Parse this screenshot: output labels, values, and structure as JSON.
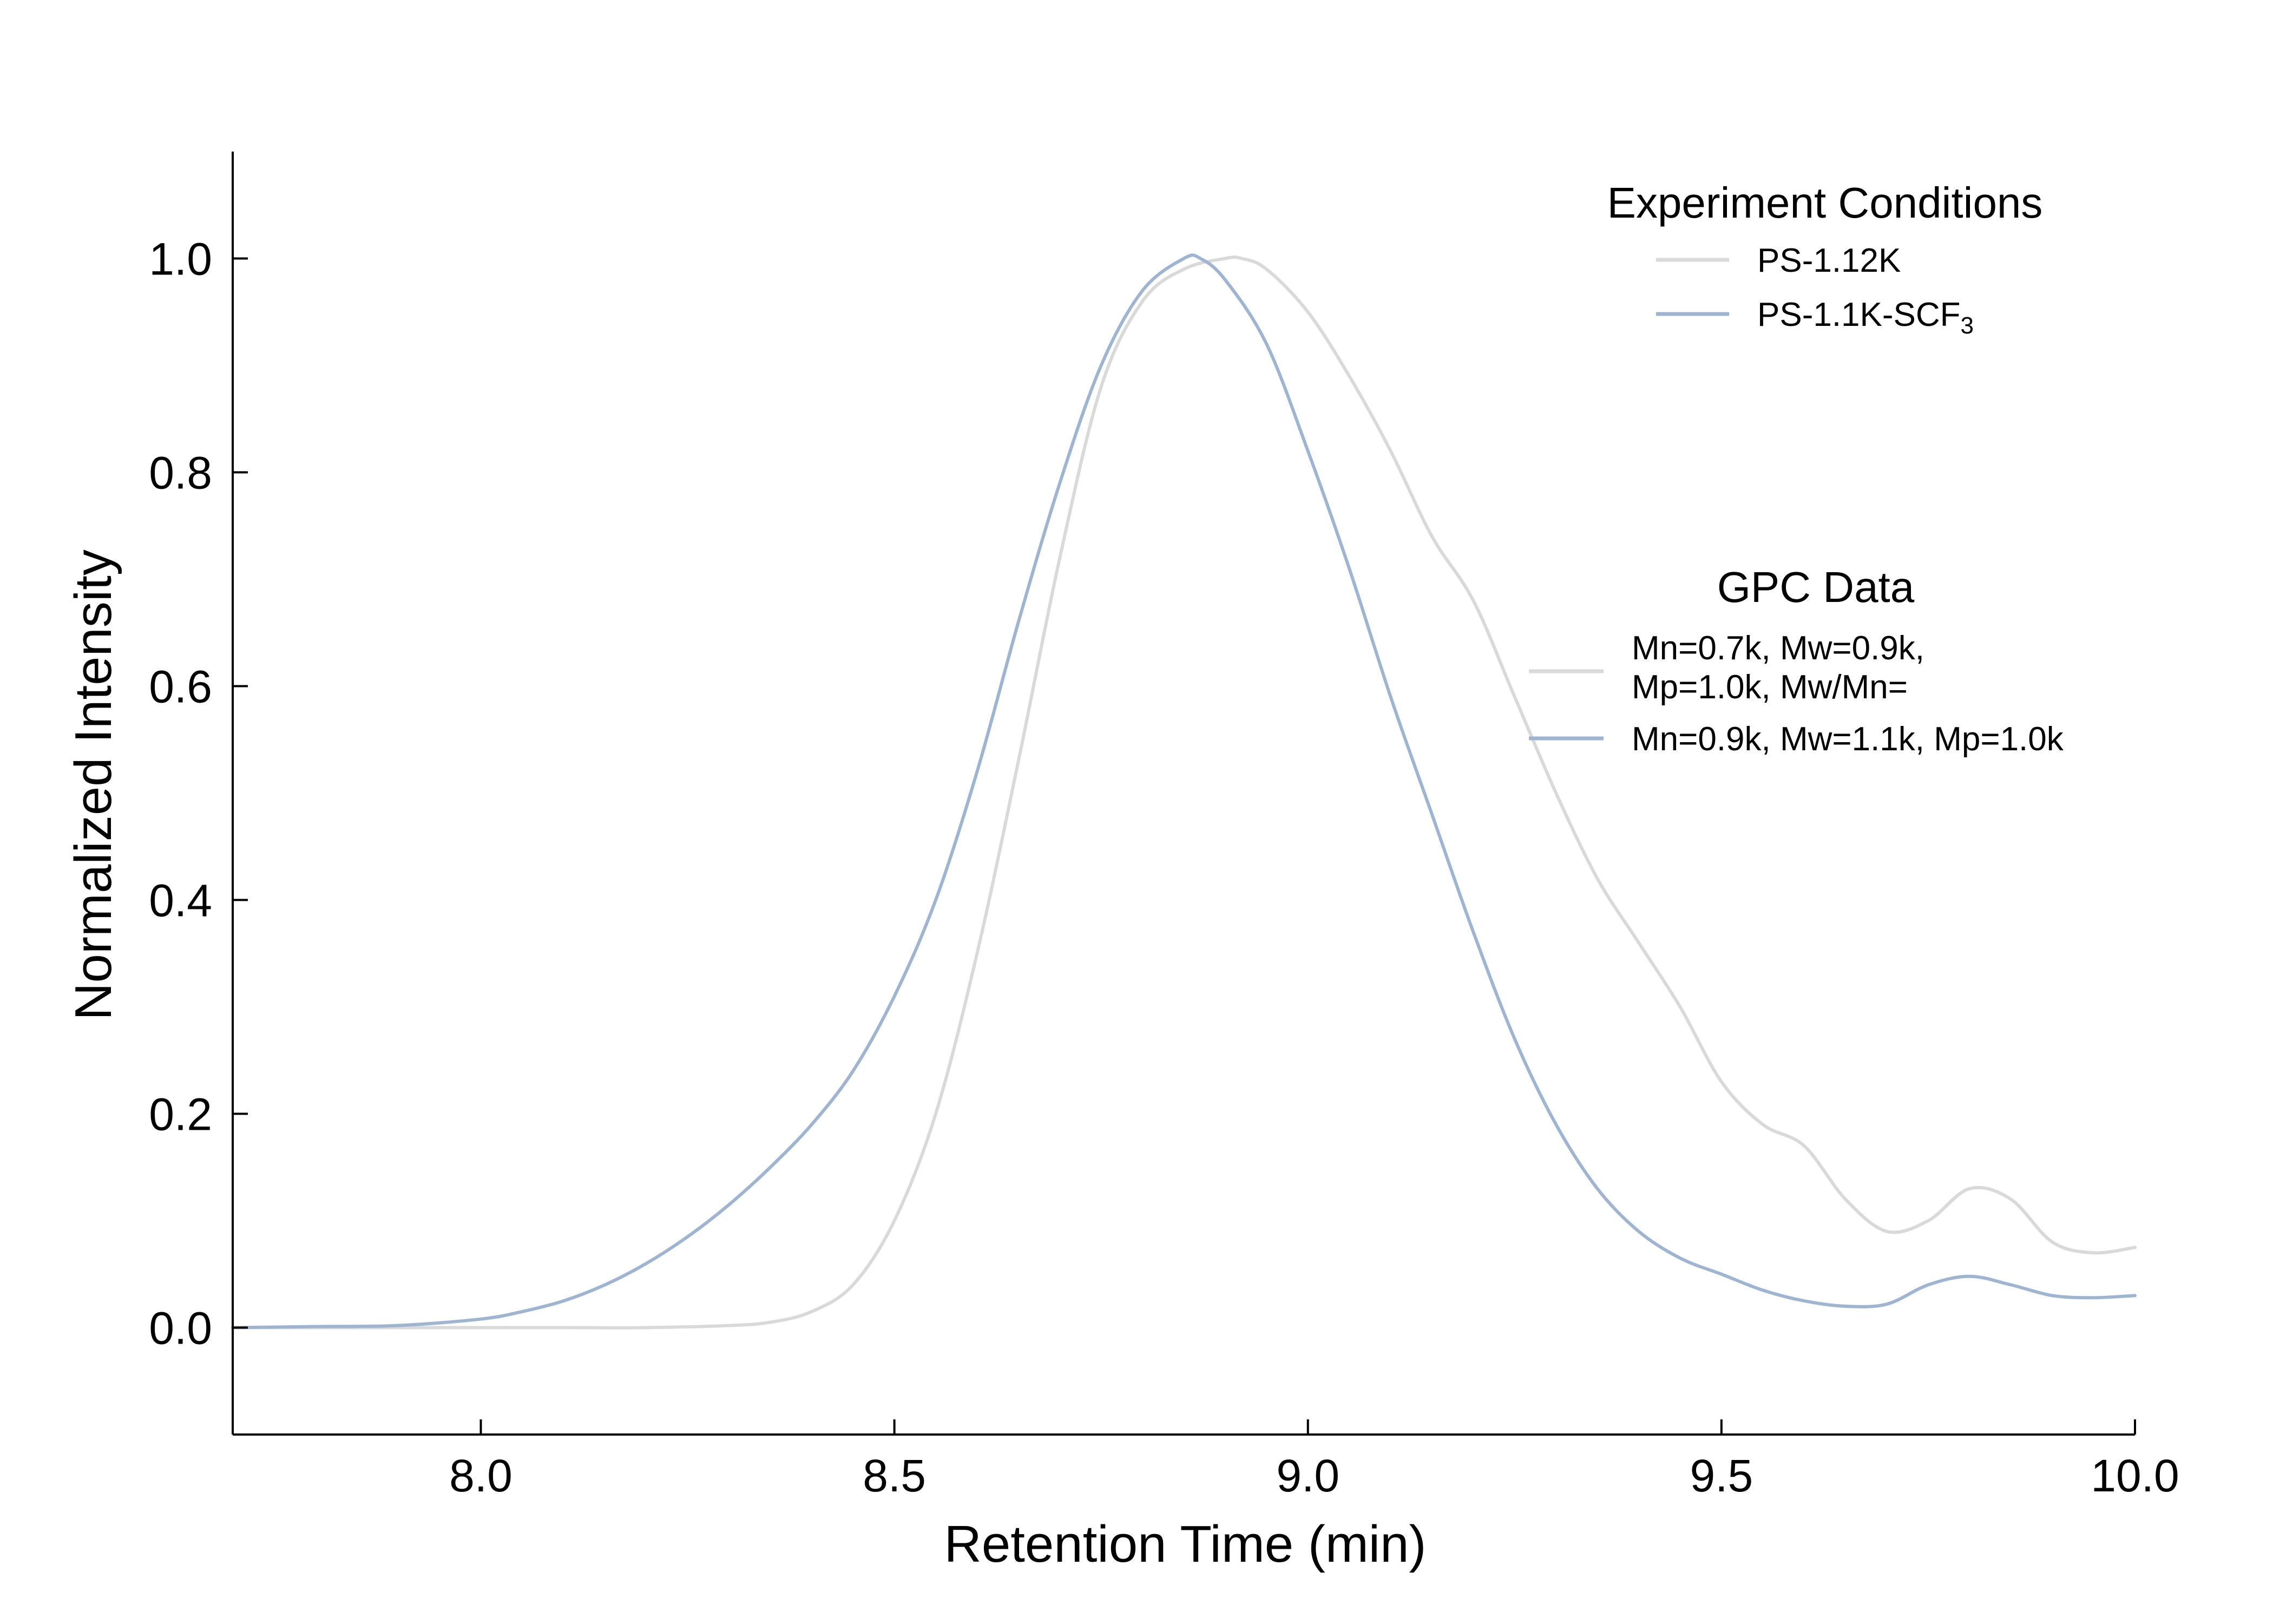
{
  "chart_data": {
    "type": "line",
    "xlabel": "Retention Time (min)",
    "ylabel": "Normalized Intensity",
    "xlim": [
      7.7,
      10.0
    ],
    "ylim": [
      -0.1,
      1.1
    ],
    "xticks": [
      8.0,
      8.5,
      9.0,
      9.5,
      10.0
    ],
    "xtick_labels": [
      "8.0",
      "8.5",
      "9.0",
      "9.5",
      "10.0"
    ],
    "yticks": [
      0.0,
      0.2,
      0.4,
      0.6,
      0.8,
      1.0
    ],
    "ytick_labels": [
      "0.0",
      "0.2",
      "0.4",
      "0.6",
      "0.8",
      "1.0"
    ],
    "grid": false,
    "series": [
      {
        "name": "PS-1.12K",
        "color": "#d9d9d9",
        "x": [
          7.7,
          7.8,
          7.9,
          8.0,
          8.1,
          8.2,
          8.3,
          8.35,
          8.4,
          8.45,
          8.5,
          8.55,
          8.6,
          8.65,
          8.7,
          8.75,
          8.8,
          8.85,
          8.9,
          8.92,
          8.95,
          9.0,
          9.05,
          9.1,
          9.15,
          9.2,
          9.25,
          9.3,
          9.35,
          9.4,
          9.45,
          9.5,
          9.55,
          9.6,
          9.65,
          9.7,
          9.75,
          9.8,
          9.85,
          9.9,
          9.95,
          10.0
        ],
        "y": [
          0.0,
          0.0,
          0.0,
          0.0,
          0.0,
          0.0,
          0.002,
          0.005,
          0.015,
          0.04,
          0.1,
          0.2,
          0.35,
          0.53,
          0.72,
          0.88,
          0.96,
          0.99,
          1.0,
          1.0,
          0.99,
          0.95,
          0.89,
          0.82,
          0.74,
          0.68,
          0.59,
          0.5,
          0.42,
          0.36,
          0.3,
          0.23,
          0.19,
          0.17,
          0.12,
          0.09,
          0.1,
          0.13,
          0.12,
          0.08,
          0.07,
          0.075
        ]
      },
      {
        "name": "PS-1.1K-SCF3",
        "color": "#9db5d3",
        "x": [
          7.7,
          7.8,
          7.9,
          8.0,
          8.05,
          8.1,
          8.15,
          8.2,
          8.25,
          8.3,
          8.35,
          8.4,
          8.45,
          8.5,
          8.55,
          8.6,
          8.65,
          8.7,
          8.75,
          8.8,
          8.85,
          8.87,
          8.9,
          8.95,
          9.0,
          9.05,
          9.1,
          9.15,
          9.2,
          9.25,
          9.3,
          9.35,
          9.4,
          9.45,
          9.5,
          9.55,
          9.6,
          9.65,
          9.7,
          9.75,
          9.8,
          9.85,
          9.9,
          9.95,
          10.0
        ],
        "y": [
          0.0,
          0.001,
          0.002,
          0.008,
          0.015,
          0.025,
          0.04,
          0.06,
          0.085,
          0.115,
          0.15,
          0.19,
          0.24,
          0.31,
          0.4,
          0.52,
          0.66,
          0.79,
          0.9,
          0.97,
          1.0,
          1.0,
          0.98,
          0.92,
          0.82,
          0.71,
          0.59,
          0.48,
          0.37,
          0.27,
          0.19,
          0.13,
          0.09,
          0.065,
          0.05,
          0.035,
          0.025,
          0.02,
          0.022,
          0.04,
          0.048,
          0.04,
          0.03,
          0.028,
          0.03
        ]
      }
    ],
    "legends": [
      {
        "title": "Experiment Conditions",
        "entries": [
          {
            "label": "PS-1.12K",
            "color": "#d9d9d9"
          },
          {
            "label": "PS-1.1K-SCF",
            "subscript": "3",
            "color": "#9db5d3"
          }
        ]
      },
      {
        "title": "GPC Data",
        "entries": [
          {
            "lines": [
              "Mn=0.7k, Mw=0.9k,",
              "Mp=1.0k, Mw/Mn="
            ],
            "color": "#d9d9d9"
          },
          {
            "lines": [
              "Mn=0.9k, Mw=1.1k, Mp=1.0k"
            ],
            "color": "#9db5d3"
          }
        ]
      }
    ]
  }
}
